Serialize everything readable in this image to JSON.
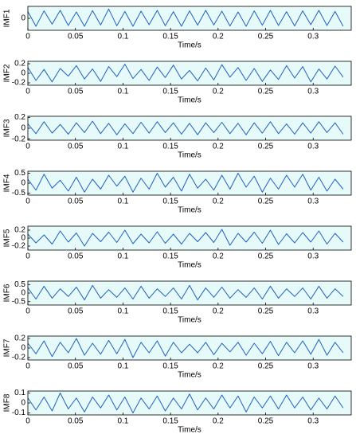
{
  "chart_data": [
    {
      "type": "line",
      "ylabel": "IMF1",
      "xlabel": "Time/s",
      "color": "#2060c0",
      "xlim": [
        0,
        0.34
      ],
      "xticks": [
        0,
        0.05,
        0.1,
        0.15,
        0.2,
        0.25,
        0.3
      ],
      "ylim": [
        -0.45,
        0.45
      ],
      "yticks": [
        0
      ],
      "x": [
        0,
        0.0085,
        0.017,
        0.0255,
        0.034,
        0.0425,
        0.051,
        0.0595,
        0.068,
        0.0765,
        0.085,
        0.0935,
        0.102,
        0.1105,
        0.119,
        0.1275,
        0.136,
        0.1445,
        0.153,
        0.1615,
        0.17,
        0.1785,
        0.187,
        0.1955,
        0.204,
        0.2125,
        0.221,
        0.2295,
        0.238,
        0.2465,
        0.255,
        0.2635,
        0.272,
        0.2805,
        0.289,
        0.2975,
        0.306,
        0.3145,
        0.323,
        0.3315
      ],
      "values": [
        0.25,
        -0.3,
        0.28,
        -0.22,
        0.3,
        -0.27,
        0.24,
        -0.3,
        0.29,
        -0.25,
        0.35,
        -0.28,
        0.26,
        -0.3,
        0.27,
        -0.24,
        0.3,
        -0.28,
        0.25,
        -0.3,
        0.28,
        -0.26,
        0.3,
        -0.25,
        0.27,
        -0.29,
        0.24,
        -0.3,
        0.28,
        -0.26,
        0.3,
        -0.27,
        0.25,
        -0.29,
        0.28,
        -0.24,
        0.3,
        -0.27,
        0.26,
        -0.3
      ]
    },
    {
      "type": "line",
      "ylabel": "IMF2",
      "xlabel": "Time/s",
      "color": "#2060c0",
      "xlim": [
        0,
        0.34
      ],
      "xticks": [
        0,
        0.05,
        0.1,
        0.15,
        0.2,
        0.25,
        0.3
      ],
      "ylim": [
        -0.25,
        0.25
      ],
      "yticks": [
        -0.2,
        0,
        0.2
      ],
      "x": [
        0,
        0.0085,
        0.017,
        0.0255,
        0.034,
        0.0425,
        0.051,
        0.0595,
        0.068,
        0.0765,
        0.085,
        0.0935,
        0.102,
        0.1105,
        0.119,
        0.1275,
        0.136,
        0.1445,
        0.153,
        0.1615,
        0.17,
        0.1785,
        0.187,
        0.1955,
        0.204,
        0.2125,
        0.221,
        0.2295,
        0.238,
        0.2465,
        0.255,
        0.2635,
        0.272,
        0.2805,
        0.289,
        0.2975,
        0.306,
        0.3145,
        0.323,
        0.3315
      ],
      "values": [
        0.12,
        -0.15,
        0.08,
        -0.18,
        0.1,
        -0.06,
        0.16,
        -0.12,
        0.09,
        -0.17,
        0.14,
        -0.07,
        0.19,
        -0.11,
        0.08,
        -0.15,
        0.13,
        -0.09,
        0.17,
        -0.12,
        0.06,
        -0.16,
        0.11,
        -0.14,
        0.18,
        -0.08,
        0.12,
        -0.15,
        0.1,
        -0.17,
        0.07,
        -0.13,
        0.16,
        -0.1,
        0.14,
        -0.18,
        0.09,
        -0.12,
        0.15,
        -0.08
      ]
    },
    {
      "type": "line",
      "ylabel": "IMF3",
      "xlabel": "Time/s",
      "color": "#2060c0",
      "xlim": [
        0,
        0.34
      ],
      "xticks": [
        0,
        0.05,
        0.1,
        0.15,
        0.2,
        0.25,
        0.3
      ],
      "ylim": [
        -0.22,
        0.22
      ],
      "yticks": [
        -0.2,
        0,
        0.2
      ],
      "x": [
        0,
        0.0085,
        0.017,
        0.0255,
        0.034,
        0.0425,
        0.051,
        0.0595,
        0.068,
        0.0765,
        0.085,
        0.0935,
        0.102,
        0.1105,
        0.119,
        0.1275,
        0.136,
        0.1445,
        0.153,
        0.1615,
        0.17,
        0.1785,
        0.187,
        0.1955,
        0.204,
        0.2125,
        0.221,
        0.2295,
        0.238,
        0.2465,
        0.255,
        0.2635,
        0.272,
        0.2805,
        0.289,
        0.2975,
        0.306,
        0.3145,
        0.323,
        0.3315
      ],
      "values": [
        0.08,
        -0.1,
        0.12,
        -0.09,
        0.07,
        -0.11,
        0.1,
        -0.08,
        0.13,
        -0.1,
        0.09,
        -0.12,
        0.08,
        -0.1,
        0.11,
        -0.09,
        0.12,
        -0.08,
        0.1,
        -0.11,
        0.09,
        -0.12,
        0.1,
        -0.08,
        0.11,
        -0.1,
        0.09,
        -0.12,
        0.1,
        -0.09,
        0.12,
        -0.1,
        0.08,
        -0.11,
        0.1,
        -0.09,
        0.12,
        -0.08,
        0.1,
        -0.11
      ]
    },
    {
      "type": "line",
      "ylabel": "IMF4",
      "xlabel": "Time/s",
      "color": "#2060c0",
      "xlim": [
        0,
        0.34
      ],
      "xticks": [
        0,
        0.05,
        0.1,
        0.15,
        0.2,
        0.25,
        0.3
      ],
      "ylim": [
        -0.6,
        0.6
      ],
      "yticks": [
        -0.5,
        0,
        0.5
      ],
      "x": [
        0,
        0.0085,
        0.017,
        0.0255,
        0.034,
        0.0425,
        0.051,
        0.0595,
        0.068,
        0.0765,
        0.085,
        0.0935,
        0.102,
        0.1105,
        0.119,
        0.1275,
        0.136,
        0.1445,
        0.153,
        0.1615,
        0.17,
        0.1785,
        0.187,
        0.1955,
        0.204,
        0.2125,
        0.221,
        0.2295,
        0.238,
        0.2465,
        0.255,
        0.2635,
        0.272,
        0.2805,
        0.289,
        0.2975,
        0.306,
        0.3145,
        0.323,
        0.3315
      ],
      "values": [
        0.2,
        -0.35,
        0.45,
        -0.25,
        0.15,
        -0.4,
        0.3,
        -0.45,
        0.2,
        -0.3,
        0.4,
        -0.15,
        0.35,
        -0.45,
        0.25,
        -0.3,
        0.5,
        -0.2,
        0.3,
        -0.4,
        0.45,
        -0.25,
        0.2,
        -0.35,
        0.4,
        -0.3,
        0.5,
        -0.2,
        0.35,
        -0.45,
        0.25,
        -0.3,
        0.4,
        -0.2,
        0.45,
        -0.35,
        0.3,
        -0.4,
        0.2,
        -0.3
      ]
    },
    {
      "type": "line",
      "ylabel": "IMF5",
      "xlabel": "Time/s",
      "color": "#2060c0",
      "xlim": [
        0,
        0.34
      ],
      "xticks": [
        0,
        0.05,
        0.1,
        0.15,
        0.2,
        0.25,
        0.3
      ],
      "ylim": [
        -0.3,
        0.3
      ],
      "yticks": [
        -0.2,
        0,
        0.2
      ],
      "x": [
        0,
        0.0085,
        0.017,
        0.0255,
        0.034,
        0.0425,
        0.051,
        0.0595,
        0.068,
        0.0765,
        0.085,
        0.0935,
        0.102,
        0.1105,
        0.119,
        0.1275,
        0.136,
        0.1445,
        0.153,
        0.1615,
        0.17,
        0.1785,
        0.187,
        0.1955,
        0.204,
        0.2125,
        0.221,
        0.2295,
        0.238,
        0.2465,
        0.255,
        0.2635,
        0.272,
        0.2805,
        0.289,
        0.2975,
        0.306,
        0.3145,
        0.323,
        0.3315
      ],
      "values": [
        0.1,
        -0.12,
        0.08,
        -0.15,
        0.18,
        -0.1,
        0.13,
        -0.2,
        0.12,
        -0.09,
        0.15,
        -0.11,
        0.2,
        -0.14,
        0.1,
        -0.12,
        0.16,
        -0.13,
        0.1,
        -0.15,
        0.12,
        -0.09,
        0.14,
        -0.11,
        0.22,
        -0.18,
        0.12,
        -0.1,
        0.15,
        -0.13,
        0.2,
        -0.16,
        0.11,
        -0.12,
        0.14,
        -0.1,
        0.18,
        -0.15,
        0.12,
        -0.1
      ]
    },
    {
      "type": "line",
      "ylabel": "IMF6",
      "xlabel": "Time/s",
      "color": "#2060c0",
      "xlim": [
        0,
        0.34
      ],
      "xticks": [
        0,
        0.05,
        0.1,
        0.15,
        0.2,
        0.25,
        0.3
      ],
      "ylim": [
        -0.7,
        0.7
      ],
      "yticks": [
        -0.5,
        0,
        0.5
      ],
      "x": [
        0,
        0.0085,
        0.017,
        0.0255,
        0.034,
        0.0425,
        0.051,
        0.0595,
        0.068,
        0.0765,
        0.085,
        0.0935,
        0.102,
        0.1105,
        0.119,
        0.1275,
        0.136,
        0.1445,
        0.153,
        0.1615,
        0.17,
        0.1785,
        0.187,
        0.1955,
        0.204,
        0.2125,
        0.221,
        0.2295,
        0.238,
        0.2465,
        0.255,
        0.2635,
        0.272,
        0.2805,
        0.289,
        0.2975,
        0.306,
        0.3145,
        0.323,
        0.3315
      ],
      "values": [
        0.3,
        -0.35,
        0.4,
        -0.3,
        0.25,
        -0.2,
        0.35,
        -0.4,
        0.45,
        -0.3,
        0.2,
        -0.25,
        0.3,
        -0.35,
        0.4,
        -0.3,
        0.25,
        -0.2,
        0.3,
        -0.35,
        0.45,
        -0.4,
        0.3,
        -0.25,
        0.35,
        -0.3,
        0.2,
        -0.25,
        0.3,
        -0.35,
        0.4,
        -0.3,
        0.25,
        -0.2,
        0.3,
        -0.35,
        0.4,
        -0.3,
        0.25,
        -0.2
      ]
    },
    {
      "type": "line",
      "ylabel": "IMF7",
      "xlabel": "Time/s",
      "color": "#2060c0",
      "xlim": [
        0,
        0.34
      ],
      "xticks": [
        0,
        0.05,
        0.1,
        0.15,
        0.2,
        0.25,
        0.3
      ],
      "ylim": [
        -0.25,
        0.25
      ],
      "yticks": [
        -0.2,
        0,
        0.2
      ],
      "x": [
        0,
        0.0085,
        0.017,
        0.0255,
        0.034,
        0.0425,
        0.051,
        0.0595,
        0.068,
        0.0765,
        0.085,
        0.0935,
        0.102,
        0.1105,
        0.119,
        0.1275,
        0.136,
        0.1445,
        0.153,
        0.1615,
        0.17,
        0.1785,
        0.187,
        0.1955,
        0.204,
        0.2125,
        0.221,
        0.2295,
        0.238,
        0.2465,
        0.255,
        0.2635,
        0.272,
        0.2805,
        0.289,
        0.2975,
        0.306,
        0.3145,
        0.323,
        0.3315
      ],
      "values": [
        0.1,
        -0.12,
        0.15,
        -0.18,
        0.12,
        -0.1,
        0.2,
        -0.15,
        0.1,
        -0.13,
        0.16,
        -0.12,
        0.18,
        -0.2,
        0.12,
        -0.1,
        0.15,
        -0.17,
        0.12,
        -0.1,
        0.08,
        -0.1,
        0.12,
        -0.14,
        0.1,
        -0.08,
        0.12,
        -0.15,
        0.1,
        -0.12,
        0.14,
        -0.16,
        0.12,
        -0.1,
        0.15,
        -0.13,
        0.18,
        -0.15,
        0.12,
        -0.1
      ]
    },
    {
      "type": "line",
      "ylabel": "IMF8",
      "xlabel": "Time/s",
      "color": "#2060c0",
      "xlim": [
        0,
        0.34
      ],
      "xticks": [
        0,
        0.05,
        0.1,
        0.15,
        0.2,
        0.25,
        0.3
      ],
      "ylim": [
        -0.12,
        0.12
      ],
      "yticks": [
        -0.1,
        0,
        0.1
      ],
      "x": [
        0,
        0.0085,
        0.017,
        0.0255,
        0.034,
        0.0425,
        0.051,
        0.0595,
        0.068,
        0.0765,
        0.085,
        0.0935,
        0.102,
        0.1105,
        0.119,
        0.1275,
        0.136,
        0.1445,
        0.153,
        0.1615,
        0.17,
        0.1785,
        0.187,
        0.1955,
        0.204,
        0.2125,
        0.221,
        0.2295,
        0.238,
        0.2465,
        0.255,
        0.2635,
        0.272,
        0.2805,
        0.289,
        0.2975,
        0.306,
        0.3145,
        0.323,
        0.3315
      ],
      "values": [
        0.05,
        -0.07,
        0.06,
        -0.08,
        0.1,
        -0.06,
        0.05,
        -0.09,
        0.06,
        -0.05,
        0.08,
        -0.07,
        0.06,
        -0.1,
        0.05,
        -0.06,
        0.07,
        -0.08,
        0.05,
        -0.06,
        0.09,
        -0.07,
        0.05,
        -0.06,
        0.08,
        -0.05,
        0.07,
        -0.09,
        0.06,
        -0.05,
        0.07,
        -0.06,
        0.08,
        -0.05,
        0.06,
        -0.07,
        0.05,
        -0.06,
        0.07,
        -0.05
      ]
    }
  ]
}
